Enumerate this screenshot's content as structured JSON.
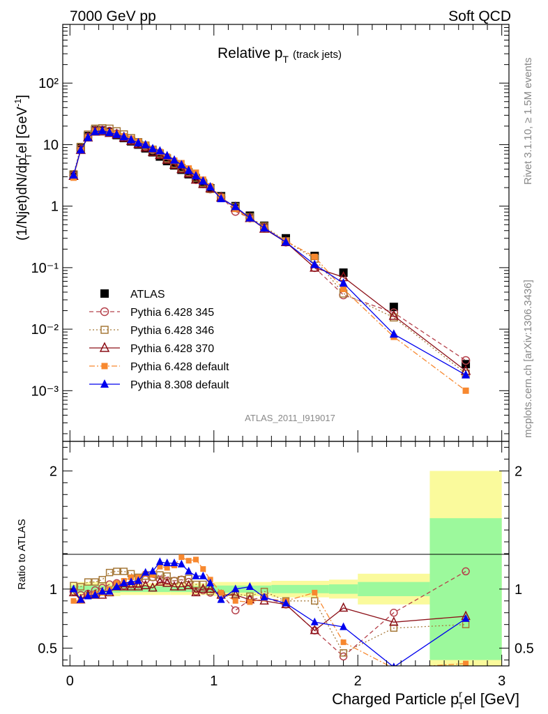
{
  "header": {
    "left": "7000 GeV pp",
    "right": "Soft QCD"
  },
  "side_labels": {
    "rivet": "Rivet 3.1.10, ≥ 1.5M events",
    "mcplots": "mcplots.cern.ch [arXiv:1306.3436]"
  },
  "chart_data": {
    "type": "scatter",
    "title_main": "Relative p",
    "title_sub": "T",
    "title_small": "(track jets)",
    "analysis_label": "ATLAS_2011_I919017",
    "ylabel_main": "(1/Njet)dN/dp",
    "ylabel_sup": "r",
    "ylabel_sub": "T",
    "ylabel_tail": "el [GeV",
    "ylabel_unit_sup": "-1",
    "ylabel_close": "]",
    "ratio_ylabel": "Ratio to ATLAS",
    "xlabel_main": "Charged Particle p",
    "xlabel_sup": "r",
    "xlabel_sub": "T",
    "xlabel_tail": "el [GeV]",
    "xlim": [
      -0.05,
      3.05
    ],
    "ylim_top": [
      0.00015,
      900
    ],
    "ylim_ratio": [
      0.35,
      2.25
    ],
    "y_scale_top": "log",
    "ratio_reference_line": 1,
    "legend_position": "lower-left",
    "x_ticks": [
      "0",
      "1",
      "2",
      "3"
    ],
    "y_ticks_top": [
      "10⁻³",
      "10⁻²",
      "10⁻¹",
      "1",
      "10",
      "10²"
    ],
    "y_ticks_ratio": [
      "0.5",
      "1",
      "2"
    ],
    "x": [
      0.025,
      0.075,
      0.125,
      0.175,
      0.225,
      0.275,
      0.325,
      0.375,
      0.425,
      0.475,
      0.525,
      0.575,
      0.625,
      0.675,
      0.725,
      0.775,
      0.825,
      0.875,
      0.925,
      0.975,
      1.05,
      1.15,
      1.25,
      1.35,
      1.5,
      1.7,
      1.9,
      2.25,
      2.75
    ],
    "series": [
      {
        "name": "ATLAS",
        "color": "#000000",
        "marker": "filled-square",
        "values": [
          3.2,
          9.0,
          13.8,
          17.2,
          17.2,
          16.0,
          14.3,
          12.8,
          11.3,
          10.0,
          8.7,
          7.5,
          6.4,
          5.4,
          4.6,
          3.9,
          3.3,
          2.8,
          2.3,
          1.95,
          1.45,
          1.0,
          0.7,
          0.48,
          0.3,
          0.155,
          0.083,
          0.023,
          0.0027
        ]
      },
      {
        "name": "Pythia 6.428 345",
        "color": "#b5404a",
        "marker": "open-circle",
        "line": "dashed",
        "values": [
          3.15,
          8.6,
          13.3,
          17.0,
          17.3,
          16.6,
          15.0,
          13.2,
          11.8,
          10.4,
          9.4,
          8.2,
          6.9,
          5.8,
          4.9,
          4.2,
          3.5,
          2.7,
          2.3,
          1.9,
          1.4,
          0.82,
          0.64,
          0.45,
          0.26,
          0.1,
          0.036,
          0.0185,
          0.0031
        ]
      },
      {
        "name": "Pythia 6.428 346",
        "color": "#a57838",
        "marker": "open-square",
        "line": "dotted",
        "values": [
          3.3,
          9.2,
          14.6,
          18.2,
          18.5,
          18.2,
          16.5,
          14.7,
          12.8,
          11.0,
          9.7,
          8.3,
          7.2,
          6.0,
          4.9,
          4.2,
          3.6,
          2.9,
          2.4,
          1.9,
          1.38,
          0.96,
          0.66,
          0.47,
          0.27,
          0.14,
          0.038,
          0.0155,
          0.0019
        ]
      },
      {
        "name": "Pythia 6.428 370",
        "color": "#8c1018",
        "marker": "open-triangle",
        "line": "solid",
        "values": [
          3.1,
          8.2,
          13.1,
          16.3,
          16.4,
          15.5,
          14.6,
          13.0,
          11.5,
          10.2,
          9.0,
          7.6,
          6.8,
          5.7,
          4.7,
          4.0,
          3.4,
          2.7,
          2.3,
          1.95,
          1.38,
          0.95,
          0.64,
          0.43,
          0.26,
          0.1,
          0.07,
          0.0165,
          0.0021
        ]
      },
      {
        "name": "Pythia 6.428 default",
        "color": "#f7882f",
        "marker": "filled-square-small",
        "line": "dashdot",
        "values": [
          2.9,
          8.1,
          13.0,
          16.5,
          16.7,
          16.0,
          15.0,
          13.7,
          12.5,
          11.0,
          9.8,
          8.4,
          7.6,
          6.4,
          5.5,
          5.0,
          4.1,
          3.5,
          2.7,
          2.1,
          1.4,
          0.9,
          0.62,
          0.44,
          0.27,
          0.15,
          0.045,
          0.0075,
          0.001
        ]
      },
      {
        "name": "Pythia 8.308 default",
        "color": "#0000ee",
        "marker": "filled-triangle",
        "line": "solid",
        "values": [
          3.2,
          8.2,
          13.0,
          16.3,
          16.8,
          15.7,
          14.6,
          13.4,
          12.0,
          10.7,
          9.9,
          8.6,
          7.9,
          6.6,
          5.6,
          4.7,
          3.8,
          3.1,
          2.55,
          2.05,
          1.32,
          0.98,
          0.64,
          0.44,
          0.26,
          0.112,
          0.056,
          0.0083,
          0.0018
        ]
      }
    ],
    "ratio_values": {
      "Pythia 6.428 345": [
        0.98,
        0.95,
        0.96,
        0.99,
        1.01,
        1.04,
        1.05,
        1.03,
        1.04,
        1.04,
        1.08,
        1.1,
        1.08,
        1.07,
        1.07,
        1.08,
        1.06,
        0.98,
        0.99,
        0.97,
        0.96,
        0.82,
        0.91,
        0.93,
        0.87,
        0.65,
        0.43,
        0.8,
        1.15
      ],
      "Pythia 6.428 346": [
        1.03,
        1.02,
        1.06,
        1.06,
        1.08,
        1.14,
        1.15,
        1.15,
        1.13,
        1.1,
        1.11,
        1.1,
        1.12,
        1.11,
        1.07,
        1.08,
        1.09,
        1.04,
        1.04,
        0.98,
        0.95,
        0.96,
        0.94,
        0.98,
        0.9,
        0.9,
        0.46,
        0.67,
        0.7
      ],
      "Pythia 6.428 370": [
        0.97,
        0.91,
        0.95,
        0.95,
        0.95,
        0.97,
        1.02,
        1.02,
        1.02,
        1.02,
        1.03,
        1.01,
        1.06,
        1.05,
        1.02,
        1.02,
        1.03,
        0.97,
        1.0,
        1.0,
        0.95,
        0.95,
        0.91,
        0.9,
        0.87,
        0.65,
        0.84,
        0.72,
        0.77
      ],
      "Pythia 6.428 default": [
        0.9,
        0.9,
        0.94,
        0.96,
        0.97,
        1.0,
        1.05,
        1.07,
        1.1,
        1.1,
        1.13,
        1.12,
        1.19,
        1.18,
        1.2,
        1.27,
        1.24,
        1.25,
        1.17,
        1.08,
        0.97,
        0.9,
        0.89,
        0.92,
        0.9,
        0.97,
        0.55,
        0.33,
        0.37
      ],
      "Pythia 8.308 default": [
        1.0,
        0.91,
        0.94,
        0.95,
        0.98,
        0.98,
        1.02,
        1.05,
        1.06,
        1.07,
        1.14,
        1.15,
        1.23,
        1.22,
        1.22,
        1.21,
        1.15,
        1.11,
        1.11,
        1.05,
        0.91,
        1.0,
        1.02,
        0.93,
        0.88,
        0.72,
        0.68,
        0.34,
        0.75
      ]
    },
    "atlas_uncertainty_bins": [
      {
        "lo": 0.0,
        "hi": 0.35,
        "green": 0.03,
        "yellow": 0.06
      },
      {
        "lo": 0.35,
        "hi": 0.7,
        "green": 0.025,
        "yellow": 0.05
      },
      {
        "lo": 0.7,
        "hi": 1.0,
        "green": 0.025,
        "yellow": 0.05
      },
      {
        "lo": 1.0,
        "hi": 1.4,
        "green": 0.03,
        "yellow": 0.06
      },
      {
        "lo": 1.4,
        "hi": 1.8,
        "green": 0.035,
        "yellow": 0.07
      },
      {
        "lo": 1.8,
        "hi": 2.0,
        "green": 0.04,
        "yellow": 0.08
      },
      {
        "lo": 2.0,
        "hi": 2.5,
        "green": 0.06,
        "yellow": 0.13
      },
      {
        "lo": 2.5,
        "hi": 3.0,
        "green": 0.6,
        "yellow": 1.0
      }
    ],
    "band_colors": {
      "green": "#9cf99c",
      "yellow": "#fafa9c"
    }
  }
}
